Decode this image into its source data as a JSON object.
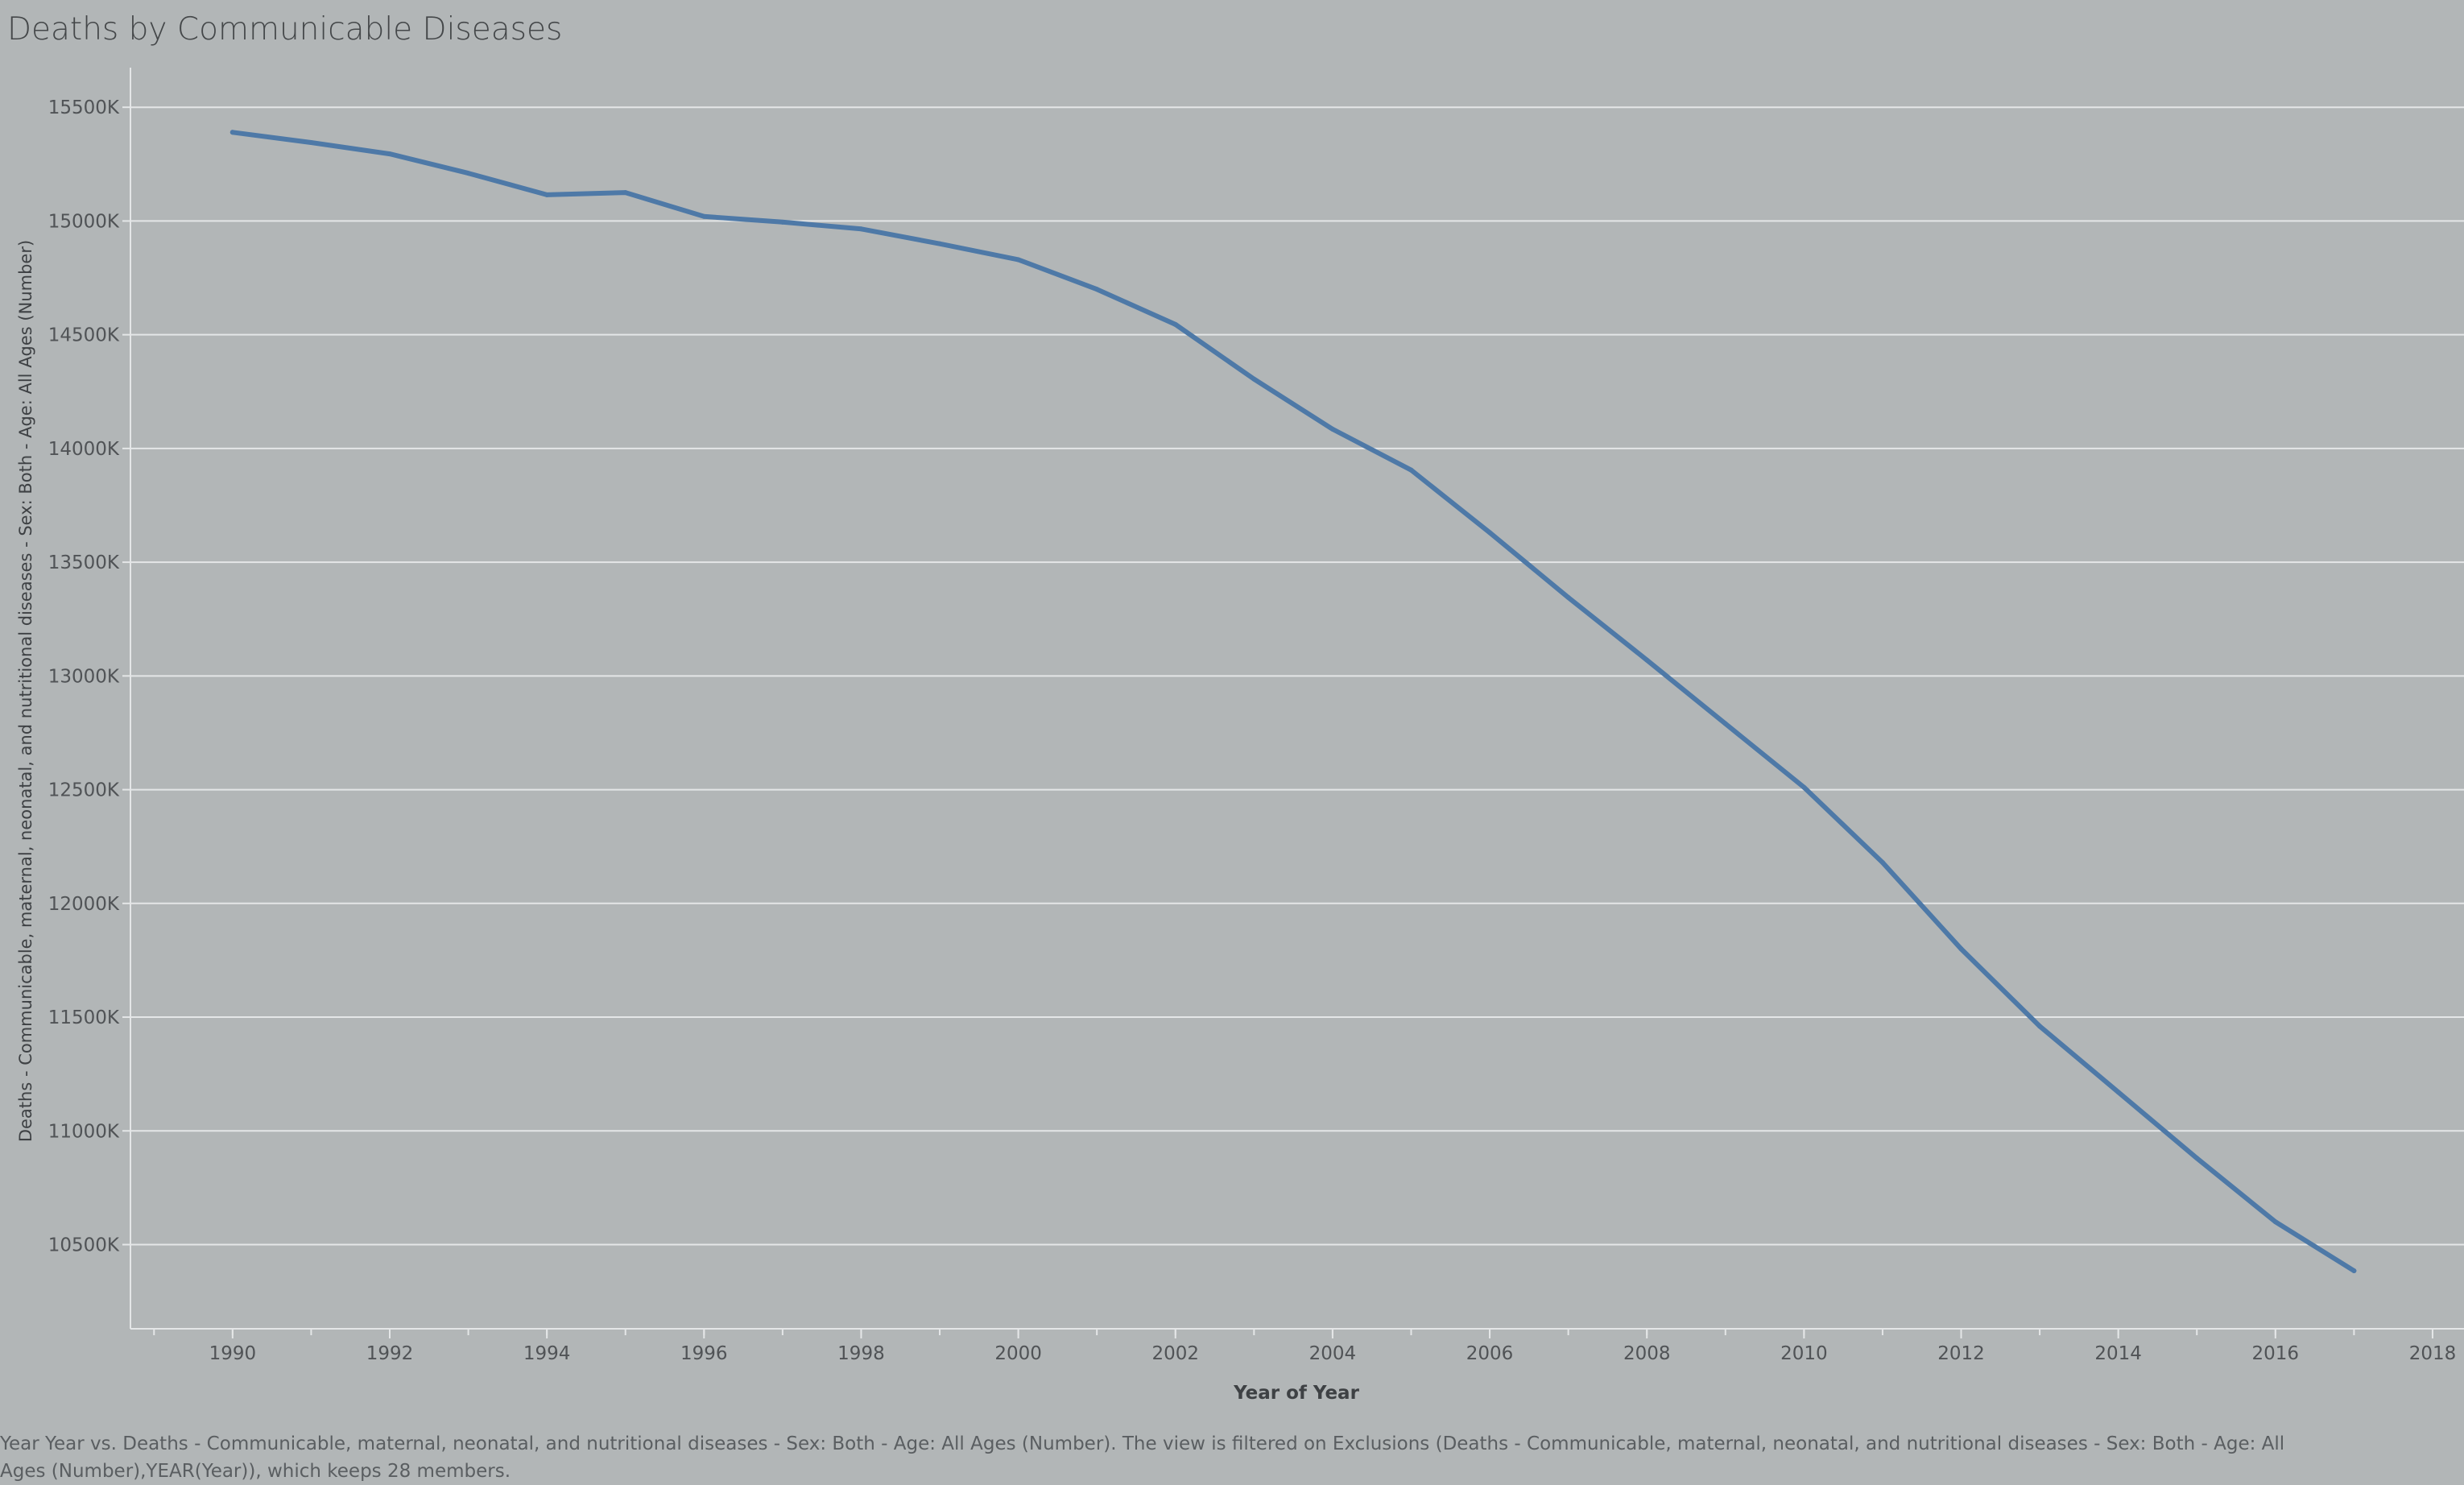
{
  "chart_data": {
    "type": "line",
    "title": "Deaths by Communicable Diseases",
    "xlabel": "Year of Year",
    "ylabel": "Deaths - Communicable, maternal, neonatal, and nutritional diseases - Sex: Both - Age: All Ages (Number)",
    "xlim": [
      1988.7,
      2018.4
    ],
    "ylim": [
      10130,
      15660
    ],
    "x_ticks": [
      1990,
      1992,
      1994,
      1996,
      1998,
      2000,
      2002,
      2004,
      2006,
      2008,
      2010,
      2012,
      2014,
      2016,
      2018
    ],
    "y_ticks": [
      10500,
      11000,
      11500,
      12000,
      12500,
      13000,
      13500,
      14000,
      14500,
      15000,
      15500
    ],
    "y_tick_suffix": "K",
    "grid": "horizontal",
    "series": [
      {
        "x": [
          1990,
          1991,
          1992,
          1993,
          1994,
          1995,
          1996,
          1997,
          1998,
          1999,
          2000,
          2001,
          2002,
          2003,
          2004,
          2005,
          2006,
          2007,
          2008,
          2009,
          2010,
          2011,
          2012,
          2013,
          2014,
          2015,
          2016,
          2017
        ],
        "values": [
          15390,
          15345,
          15295,
          15210,
          15115,
          15125,
          15020,
          14995,
          14965,
          14900,
          14830,
          14700,
          14545,
          14305,
          14085,
          13905,
          13630,
          13345,
          13070,
          12790,
          12510,
          12180,
          11800,
          11460,
          11170,
          10880,
          10600,
          10385
        ],
        "color": "#4e79a7"
      }
    ],
    "caption": "Year Year vs. Deaths - Communicable, maternal, neonatal, and nutritional diseases - Sex: Both - Age: All Ages (Number). The view is filtered on Exclusions (Deaths - Communicable, maternal, neonatal, and nutritional diseases - Sex: Both - Age: All Ages (Number),YEAR(Year)), which keeps 28 members."
  },
  "colors": {
    "background": "#b2b6b7",
    "gridline": "#e4e6e7",
    "axis": "#e4e6e7",
    "tick_text": "#505356",
    "line": "#4e79a7"
  }
}
